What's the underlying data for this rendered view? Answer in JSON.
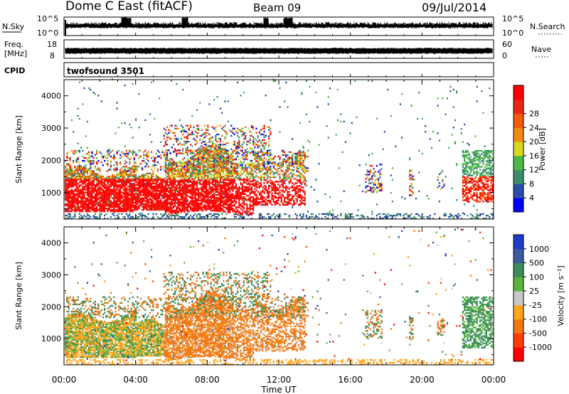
{
  "header": {
    "station": "Dome C East (fitACF)",
    "beam": "Beam 09",
    "date": "09/Jul/2014"
  },
  "nsky_panel": {
    "left_label": "N.Sky",
    "left_ticks": [
      "10^5",
      "10^0"
    ],
    "right_ticks": [
      "10^5",
      "10^0"
    ],
    "right_label": "N.Search"
  },
  "freq_panel": {
    "left_label_line1": "Freq.",
    "left_label_line2": "[MHz]",
    "left_ticks": [
      "18",
      "8"
    ],
    "right_ticks": [
      "60",
      "0"
    ],
    "right_label": "Nave"
  },
  "cpid_panel": {
    "label": "CPID",
    "program": "twofsound 3501"
  },
  "colors": {
    "power_scale": [
      "#0000ff",
      "#2a4ea8",
      "#3c8c6a",
      "#4cb848",
      "#d8d820",
      "#f08c14",
      "#f05a0a",
      "#e82814",
      "#ff0000"
    ],
    "velocity_scale": [
      "#ff0000",
      "#ff3c00",
      "#f07814",
      "#ffa51e",
      "#c8c8c8",
      "#5ab43c",
      "#3c8c5a",
      "#3c5aa0",
      "#1e3cc8"
    ]
  },
  "chart_data": [
    {
      "type": "heatmap",
      "panel": "power",
      "xlabel": "Time UT",
      "ylabel": "Slant Range [km]",
      "x_ticks": [
        "00:00",
        "04:00",
        "08:00",
        "12:00",
        "16:00",
        "20:00",
        "00:00"
      ],
      "y_ticks": [
        1000,
        2000,
        3000,
        4000
      ],
      "ylim": [
        180,
        4500
      ],
      "xlim_hours": [
        0,
        24
      ],
      "colorbar": {
        "label": "Power [dB]",
        "ticks": [
          "4",
          "8",
          "12",
          "16",
          "20",
          "24",
          "28"
        ],
        "range": [
          0,
          30
        ]
      }
    },
    {
      "type": "heatmap",
      "panel": "velocity",
      "xlabel": "Time UT",
      "ylabel": "Slant Range [km]",
      "x_ticks": [
        "00:00",
        "04:00",
        "08:00",
        "12:00",
        "16:00",
        "20:00",
        "00:00"
      ],
      "y_ticks": [
        1000,
        2000,
        3000,
        4000
      ],
      "ylim": [
        180,
        4500
      ],
      "xlim_hours": [
        0,
        24
      ],
      "colorbar": {
        "label": "Velocity [m s⁻¹]",
        "ticks": [
          "1000",
          "500",
          "100",
          "25",
          "-25",
          "-100",
          "-500",
          "-1000"
        ]
      }
    }
  ]
}
